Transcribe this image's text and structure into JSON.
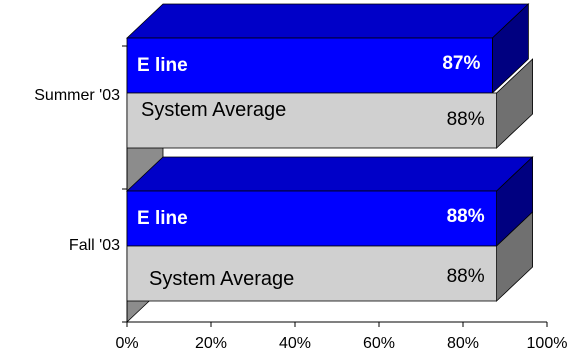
{
  "chart_data": {
    "type": "bar",
    "orientation": "horizontal",
    "style": "3d",
    "categories": [
      "Summer '03",
      "Fall '03"
    ],
    "series": [
      {
        "name": "E line",
        "values": [
          87,
          88
        ],
        "labels": [
          "87%",
          "88%"
        ]
      },
      {
        "name": "System Average",
        "values": [
          88,
          88
        ],
        "labels": [
          "88%",
          "88%"
        ]
      }
    ],
    "xlim": [
      0,
      100
    ],
    "x_ticks": [
      "0%",
      "20%",
      "40%",
      "60%",
      "80%",
      "100%"
    ],
    "grid": false,
    "legend": "none",
    "title": "",
    "xlabel": "",
    "ylabel": ""
  },
  "colors": {
    "e_line_front": "#0000ff",
    "e_line_top": "#0000c8",
    "e_line_side": "#000080",
    "system_average_front": "#d0d0d0",
    "system_average_side": "#707070",
    "wall": "#8c8c8c",
    "axis": "#000000"
  }
}
